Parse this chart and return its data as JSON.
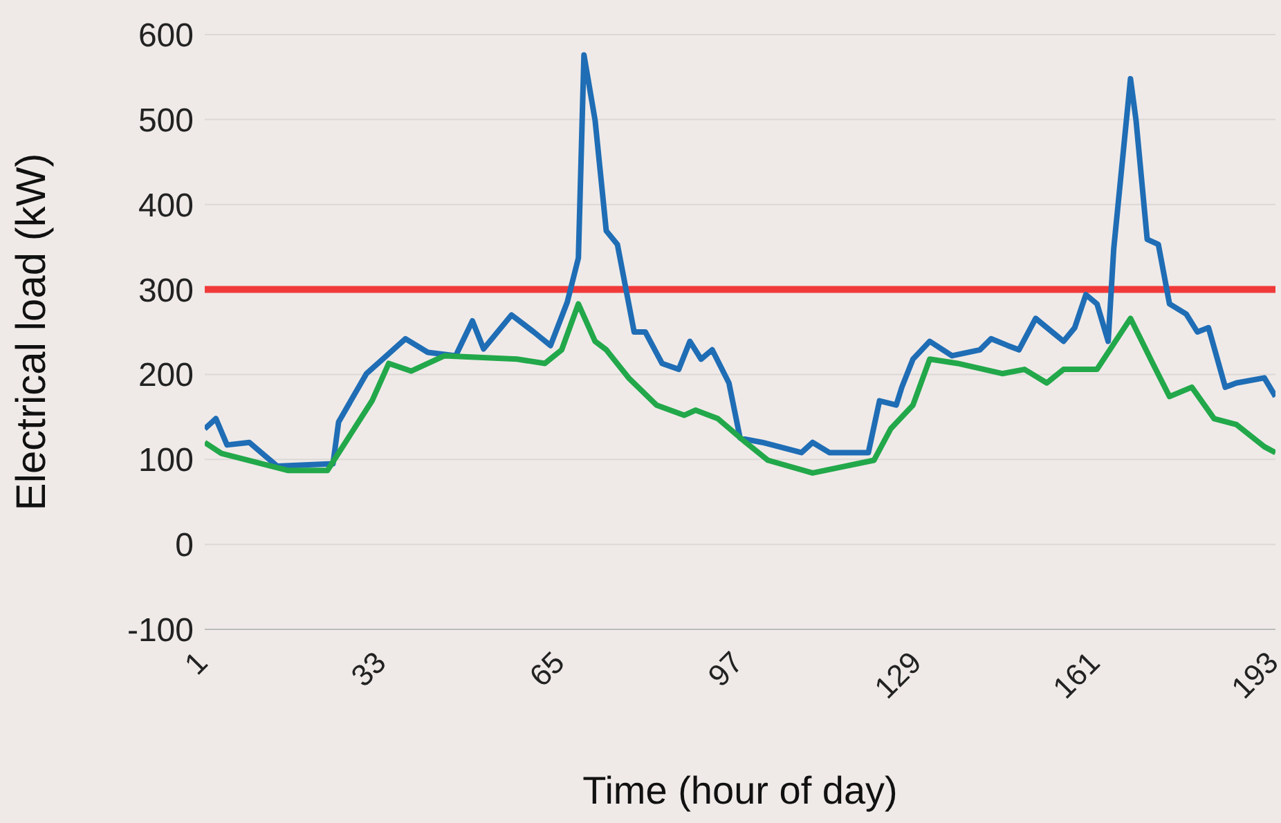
{
  "chart_data": {
    "type": "line",
    "xlabel": "Time (hour of day)",
    "ylabel": "Electrical load (kW)",
    "xlim": [
      1,
      193
    ],
    "xticks": [
      1,
      33,
      65,
      97,
      129,
      161,
      193
    ],
    "ylim": [
      -100,
      600
    ],
    "yticks": [
      -100,
      0,
      100,
      200,
      300,
      400,
      500,
      600
    ],
    "grid": "y",
    "marker": "none",
    "line_style": "solid",
    "series": [
      {
        "color": "#1f6db5",
        "x": [
          1,
          3,
          5,
          9,
          14,
          24,
          25,
          30,
          37,
          41,
          46,
          49,
          51,
          56,
          60,
          63,
          66,
          68,
          69,
          71,
          73,
          75,
          78,
          80,
          83,
          86,
          88,
          90,
          92,
          95,
          97,
          101,
          108,
          110,
          113,
          120,
          122,
          125,
          126,
          128,
          131,
          135,
          140,
          142,
          145,
          147,
          150,
          155,
          157,
          159,
          161,
          163,
          164,
          167,
          168,
          170,
          172,
          174,
          177,
          179,
          181,
          184,
          186,
          191,
          193
        ],
        "values": [
          136,
          148,
          117,
          120,
          92,
          95,
          144,
          201,
          242,
          226,
          222,
          263,
          230,
          270,
          250,
          234,
          285,
          337,
          576,
          499,
          369,
          353,
          250,
          250,
          213,
          206,
          239,
          218,
          229,
          190,
          125,
          120,
          108,
          120,
          108,
          108,
          169,
          164,
          185,
          218,
          239,
          222,
          229,
          242,
          234,
          229,
          266,
          239,
          255,
          294,
          283,
          239,
          348,
          548,
          499,
          359,
          353,
          283,
          271,
          250,
          255,
          185,
          190,
          196,
          174
        ]
      },
      {
        "color": "#22a84a",
        "x": [
          1,
          4,
          16,
          23,
          31,
          34,
          38,
          44,
          57,
          62,
          65,
          68,
          71,
          73,
          77,
          82,
          87,
          89,
          93,
          98,
          102,
          110,
          121,
          124,
          128,
          131,
          136,
          144,
          148,
          152,
          155,
          161,
          167,
          171,
          174,
          178,
          182,
          186,
          191,
          193
        ],
        "values": [
          120,
          107,
          87,
          87,
          169,
          213,
          204,
          222,
          218,
          213,
          229,
          283,
          239,
          229,
          196,
          164,
          152,
          158,
          148,
          120,
          99,
          84,
          99,
          136,
          164,
          218,
          213,
          201,
          206,
          190,
          206,
          206,
          266,
          213,
          174,
          185,
          148,
          141,
          115,
          108
        ]
      }
    ],
    "ref_lines": [
      {
        "axis": "y",
        "value": 300,
        "color": "#f03a3a"
      }
    ]
  }
}
